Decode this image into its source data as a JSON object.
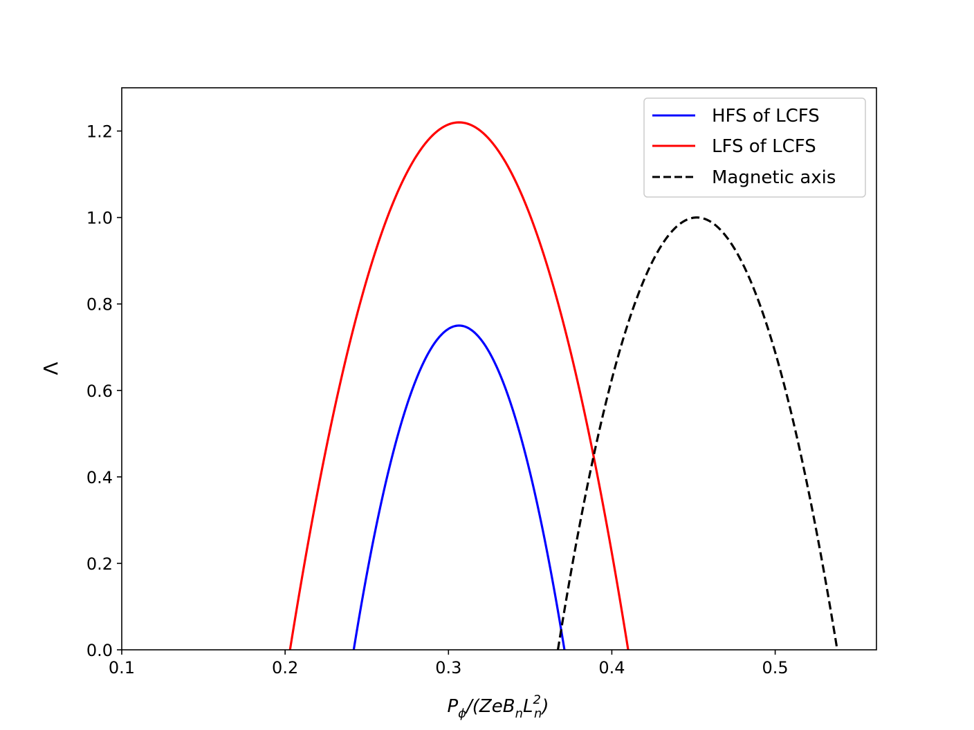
{
  "chart_data": {
    "type": "line",
    "xlabel": "P_φ/(ZeB_nL_n^2)",
    "ylabel": "Λ",
    "xlim": [
      0.1,
      0.562
    ],
    "ylim": [
      0.0,
      1.3
    ],
    "xticks": [
      0.1,
      0.2,
      0.3,
      0.4,
      0.5
    ],
    "xtick_labels": [
      "0.1",
      "0.2",
      "0.3",
      "0.4",
      "0.5"
    ],
    "yticks": [
      0.0,
      0.2,
      0.4,
      0.6,
      0.8,
      1.0,
      1.2
    ],
    "ytick_labels": [
      "0.0",
      "0.2",
      "0.4",
      "0.6",
      "0.8",
      "1.0",
      "1.2"
    ],
    "grid": false,
    "legend_position": "top-right",
    "series": [
      {
        "name": "HFS of LCFS",
        "color": "#0000ff",
        "style": "solid",
        "x": [
          0.242,
          0.255,
          0.268,
          0.281,
          0.294,
          0.3065,
          0.319,
          0.332,
          0.345,
          0.358,
          0.371
        ],
        "y": [
          0.0,
          0.2775,
          0.4935,
          0.6465,
          0.7275,
          0.75,
          0.7275,
          0.6465,
          0.4935,
          0.2775,
          0.0
        ]
      },
      {
        "name": "LFS of LCFS",
        "color": "#ff0000",
        "style": "solid",
        "x": [
          0.203,
          0.224,
          0.245,
          0.266,
          0.287,
          0.3065,
          0.328,
          0.349,
          0.37,
          0.391,
          0.41
        ],
        "y": [
          0.0,
          0.4388,
          0.78,
          1.0238,
          1.17,
          1.22,
          1.1599,
          1.0001,
          0.7294,
          0.3475,
          0.0
        ]
      },
      {
        "name": "Magnetic axis",
        "color": "#000000",
        "style": "dashed",
        "x": [
          0.367,
          0.384,
          0.401,
          0.418,
          0.435,
          0.452,
          0.469,
          0.486,
          0.503,
          0.52,
          0.538
        ],
        "y": [
          0.0,
          0.36,
          0.64,
          0.84,
          0.96,
          1.0,
          0.9608,
          0.8431,
          0.6473,
          0.3731,
          0.0
        ]
      }
    ]
  },
  "legend": {
    "items": [
      "HFS of LCFS",
      "LFS of LCFS",
      "Magnetic axis"
    ]
  },
  "axes": {
    "ylabel": "Λ",
    "xlabel_main": "P",
    "xlabel_sub1": "ϕ",
    "xlabel_mid": "/(ZeB",
    "xlabel_sub2": "n",
    "xlabel_L": "L",
    "xlabel_sup": "2",
    "xlabel_sub3": "n",
    "xlabel_close": ")"
  }
}
